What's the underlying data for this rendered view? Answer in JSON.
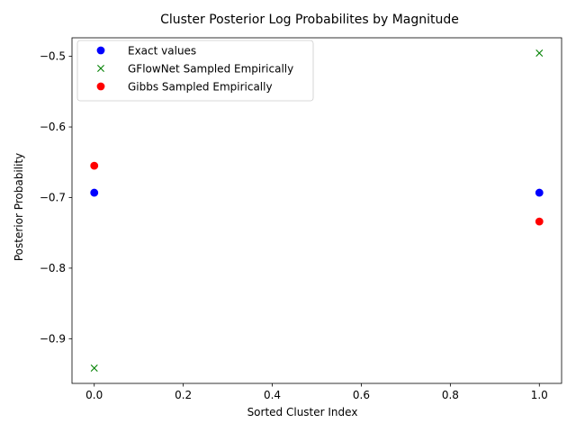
{
  "chart_data": {
    "type": "scatter",
    "title": "Cluster Posterior Log Probabilites by Magnitude",
    "xlabel": "Sorted Cluster Index",
    "ylabel": "Posterior Probability",
    "xlim": [
      -0.05,
      1.05
    ],
    "ylim": [
      -0.9633,
      -0.4737
    ],
    "xticks": [
      0.0,
      0.2,
      0.4,
      0.6,
      0.8,
      1.0
    ],
    "xtick_labels": [
      "0.0",
      "0.2",
      "0.4",
      "0.6",
      "0.8",
      "1.0"
    ],
    "yticks": [
      -0.9,
      -0.8,
      -0.7,
      -0.6,
      -0.5
    ],
    "ytick_labels": [
      "−0.9",
      "−0.8",
      "−0.7",
      "−0.6",
      "−0.5"
    ],
    "grid": false,
    "legend_position": "top-left",
    "series": [
      {
        "name": "Exact values",
        "marker": "circle",
        "color": "#0000ff",
        "x": [
          0,
          1
        ],
        "values": [
          -0.6931,
          -0.6931
        ]
      },
      {
        "name": "GFlowNet Sampled Empirically",
        "marker": "x",
        "color": "#008000",
        "x": [
          0,
          1
        ],
        "values": [
          -0.9416,
          -0.4954
        ]
      },
      {
        "name": "Gibbs Sampled Empirically",
        "marker": "circle",
        "color": "#ff0000",
        "x": [
          0,
          1
        ],
        "values": [
          -0.6549,
          -0.734
        ]
      }
    ]
  }
}
